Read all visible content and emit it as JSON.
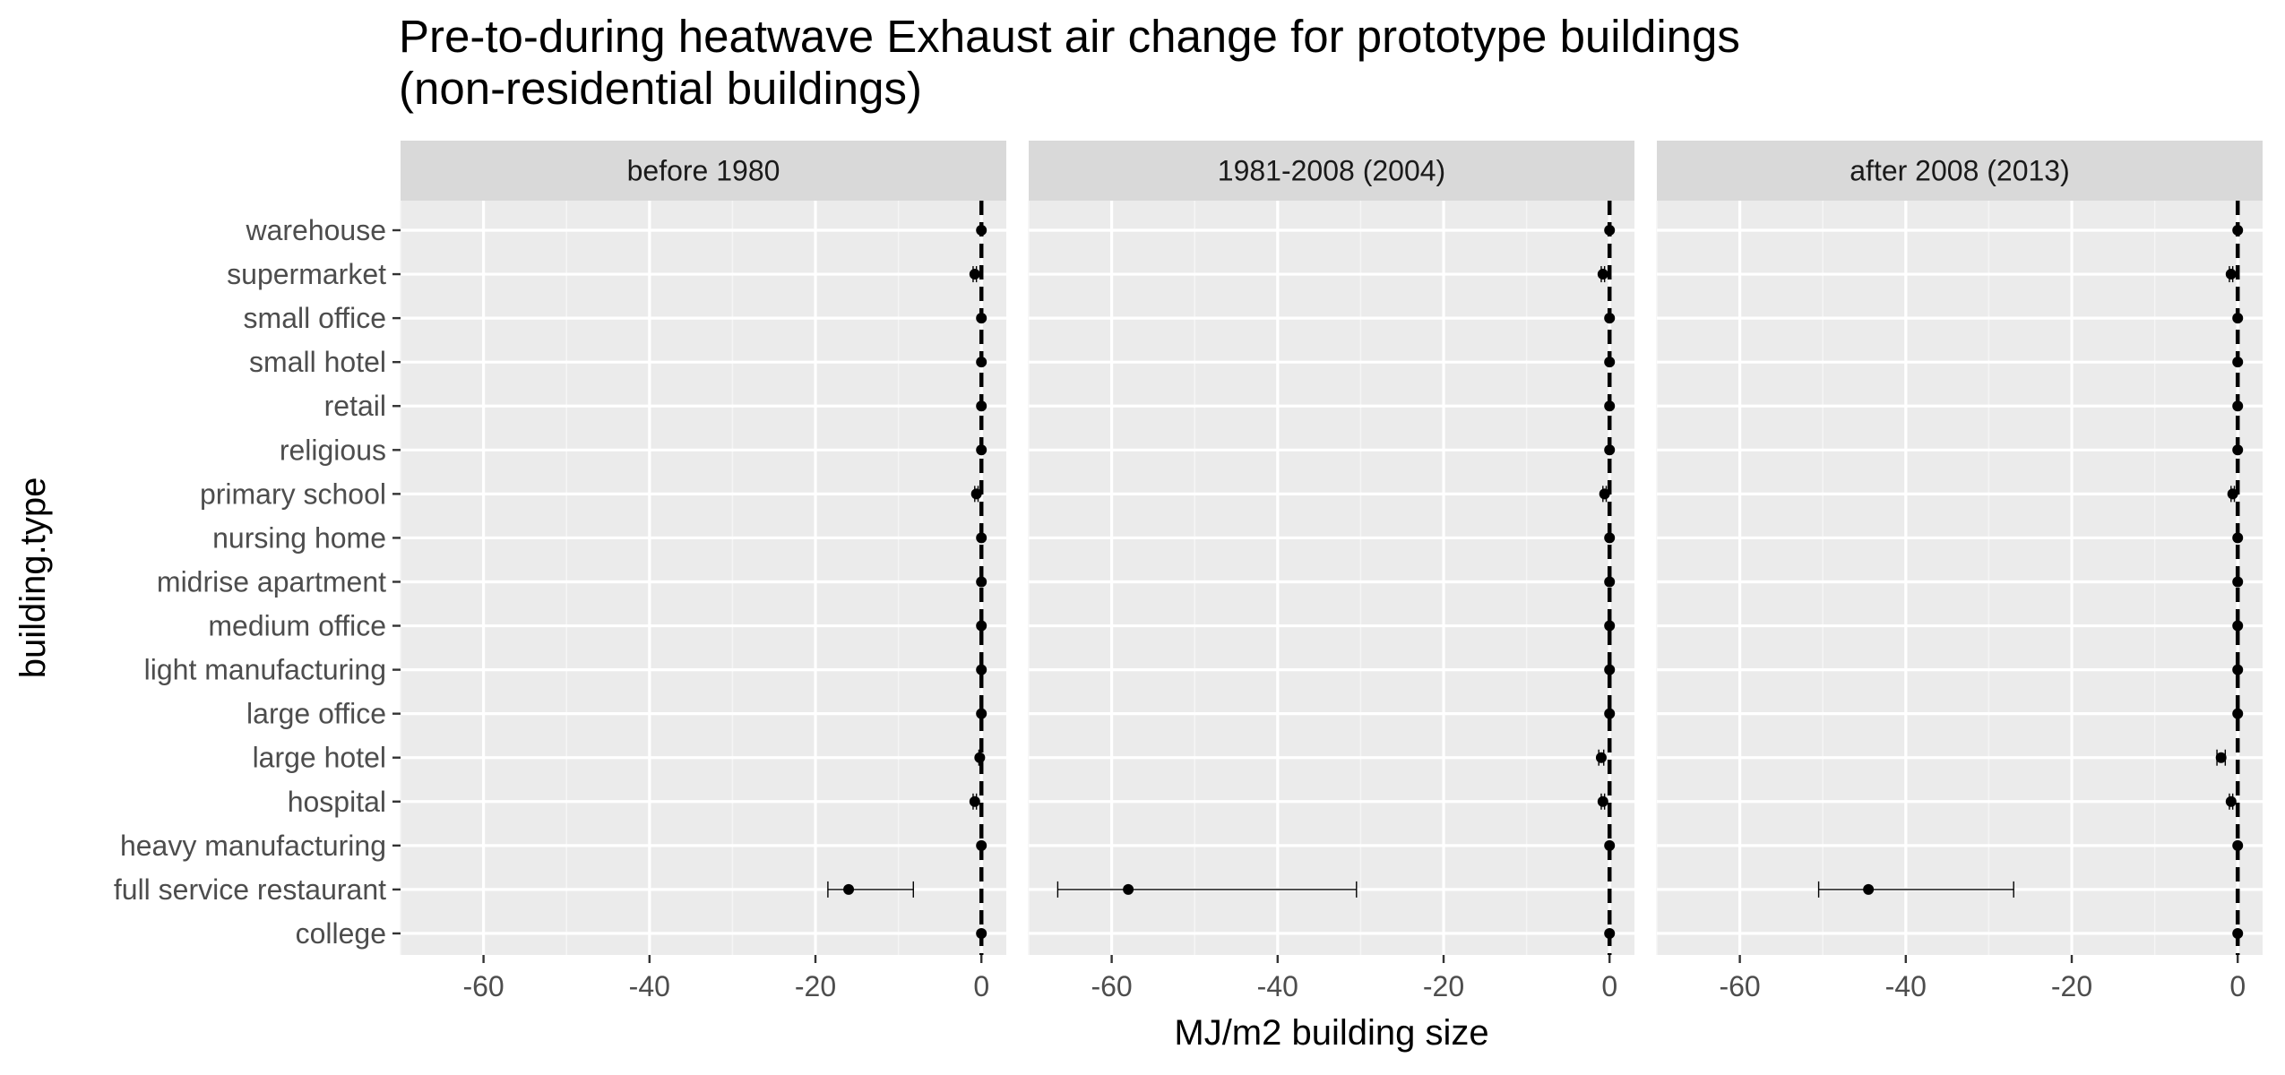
{
  "chart_data": {
    "type": "scatter",
    "title": "Pre-to-during heatwave Exhaust air change for prototype buildings",
    "subtitle": "(non-residential buildings)",
    "xlabel": "MJ/m2 building size",
    "ylabel": "building.type",
    "xlim": [
      -70,
      3
    ],
    "x_ticks": [
      -60,
      -40,
      -20,
      0
    ],
    "reference_line": 0,
    "grid": true,
    "categories": [
      "warehouse",
      "supermarket",
      "small office",
      "small hotel",
      "retail",
      "religious",
      "primary school",
      "nursing home",
      "midrise apartment",
      "medium office",
      "light manufacturing",
      "large office",
      "large hotel",
      "hospital",
      "heavy manufacturing",
      "full service restaurant",
      "college"
    ],
    "panels": [
      {
        "facet": "before 1980",
        "values": [
          0,
          -0.8,
          0,
          0,
          0,
          0,
          -0.6,
          0,
          0,
          0,
          0,
          0,
          -0.2,
          -0.8,
          0,
          -16,
          0
        ],
        "err_low": [
          0,
          -1.0,
          0,
          0,
          0,
          0,
          -0.8,
          0,
          0,
          0,
          0,
          0,
          -0.3,
          -1.0,
          0,
          -18.5,
          0
        ],
        "err_high": [
          0,
          -0.6,
          0,
          0,
          0,
          0,
          -0.4,
          0,
          0,
          0,
          0,
          0,
          -0.1,
          -0.6,
          0,
          -8.2,
          0
        ]
      },
      {
        "facet": "1981-2008 (2004)",
        "values": [
          0,
          -0.8,
          0,
          0,
          0,
          0,
          -0.6,
          0,
          0,
          0,
          0,
          0,
          -1.0,
          -0.8,
          0,
          -58,
          0
        ],
        "err_low": [
          0,
          -1.0,
          0,
          0,
          0,
          0,
          -0.8,
          0,
          0,
          0,
          0,
          0,
          -1.3,
          -1.0,
          0,
          -66.5,
          0
        ],
        "err_high": [
          0,
          -0.6,
          0,
          0,
          0,
          0,
          -0.4,
          0,
          0,
          0,
          0,
          0,
          -0.7,
          -0.6,
          0,
          -30.5,
          0
        ]
      },
      {
        "facet": "after 2008 (2013)",
        "values": [
          0,
          -0.8,
          0,
          0,
          0,
          0,
          -0.6,
          0,
          0,
          0,
          0,
          0,
          -2.0,
          -0.8,
          0,
          -44.5,
          0
        ],
        "err_low": [
          0,
          -1.0,
          0,
          0,
          0,
          0,
          -0.8,
          0,
          0,
          0,
          0,
          0,
          -2.5,
          -1.0,
          0,
          -50.5,
          0
        ],
        "err_high": [
          0,
          -0.6,
          0,
          0,
          0,
          0,
          -0.4,
          0,
          0,
          0,
          0,
          0,
          -1.5,
          -0.6,
          0,
          -27.0,
          0
        ]
      }
    ],
    "colors": {
      "panel_bg": "#EBEBEB",
      "strip_bg": "#D9D9D9",
      "grid_major": "#FFFFFF",
      "grid_minor": "#F5F5F5",
      "point": "#000000",
      "axis_text": "#4D4D4D",
      "tick": "#333333"
    }
  }
}
